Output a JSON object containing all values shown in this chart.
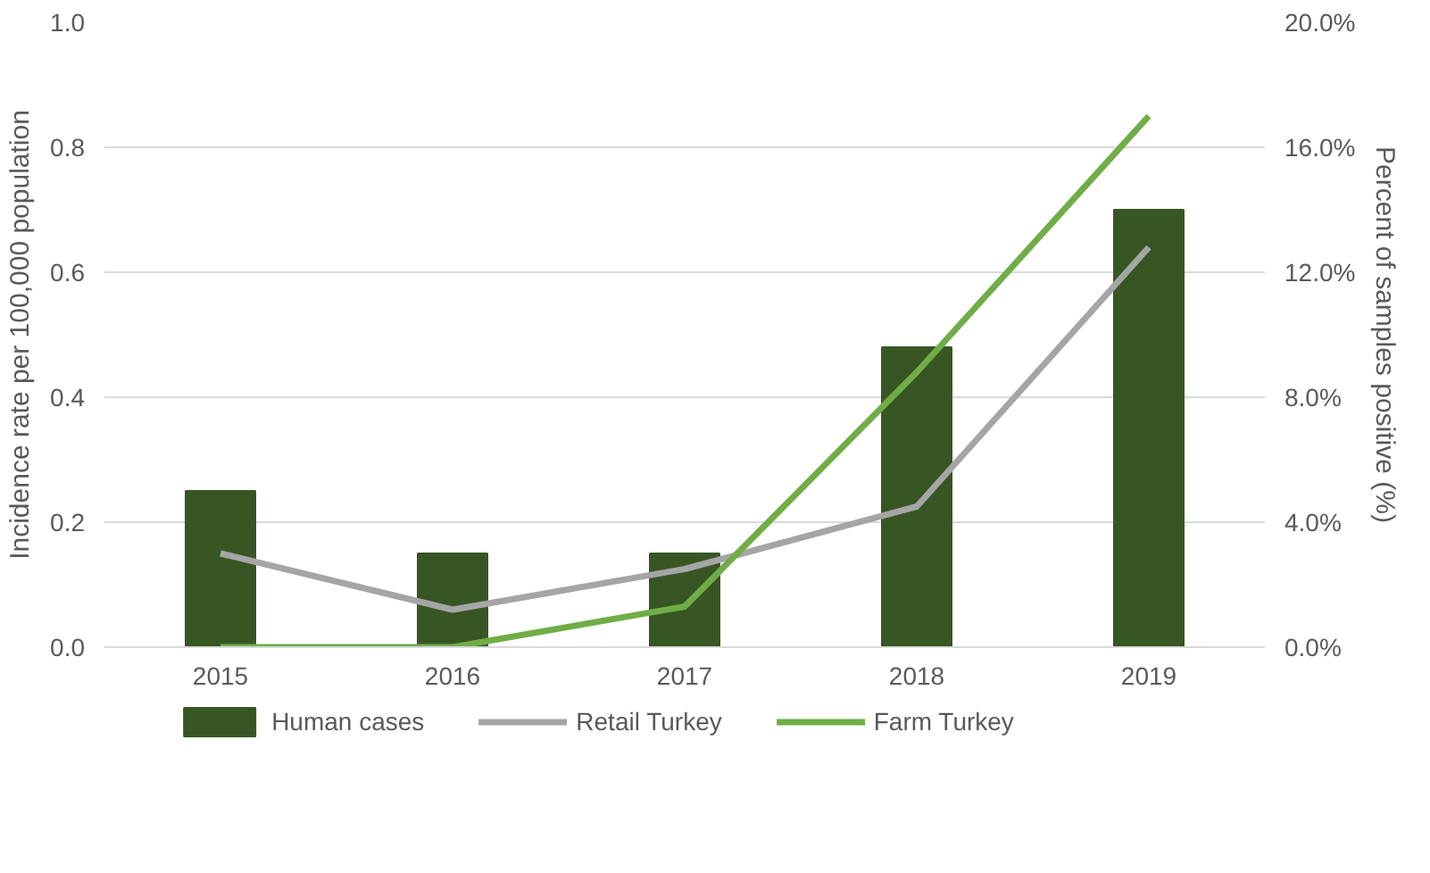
{
  "chart_data": {
    "type": "bar",
    "categories": [
      "2015",
      "2016",
      "2017",
      "2018",
      "2019"
    ],
    "ylabel": "Incidence rate per 100,000 population",
    "y2label": "Percent of samples positive (%)",
    "ylim": [
      0,
      1.0
    ],
    "yticks": [
      {
        "value": 0,
        "label": "0.0"
      },
      {
        "value": 0.2,
        "label": "0.2"
      },
      {
        "value": 0.4,
        "label": "0.4"
      },
      {
        "value": 0.6,
        "label": "0.6"
      },
      {
        "value": 0.8,
        "label": "0.8"
      },
      {
        "value": 1.0,
        "label": "1.0"
      }
    ],
    "y2lim": [
      0,
      20
    ],
    "y2ticks": [
      {
        "value": 0,
        "label": "0.0%"
      },
      {
        "value": 4,
        "label": "4.0%"
      },
      {
        "value": 8,
        "label": "8.0%"
      },
      {
        "value": 12,
        "label": "12.0%"
      },
      {
        "value": 16,
        "label": "16.0%"
      },
      {
        "value": 20,
        "label": "20.0%"
      }
    ],
    "grid": "y",
    "legend": "bottom",
    "series": [
      {
        "name": "Human cases",
        "color": "#375623",
        "values": [
          0.25,
          0.15,
          0.15,
          0.48,
          0.7
        ]
      },
      {
        "name": "Retail Turkey",
        "type": "line",
        "axis": "y2",
        "color": "#a5a5a5",
        "values": [
          3.0,
          1.2,
          2.5,
          4.5,
          12.8
        ]
      },
      {
        "name": "Farm Turkey",
        "type": "line",
        "axis": "y2",
        "color": "#70ad47",
        "values": [
          0,
          0,
          1.3,
          8.8,
          17.0
        ]
      }
    ]
  }
}
